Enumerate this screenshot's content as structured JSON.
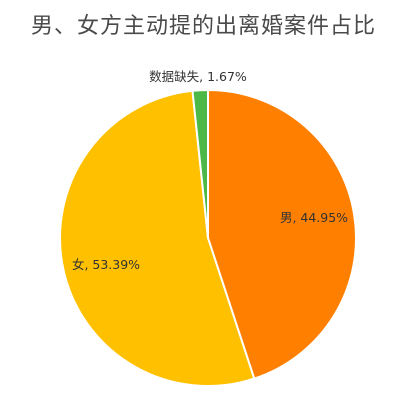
{
  "title": "男、女方主动提的出离婚案件占比",
  "chart_data": {
    "type": "pie",
    "title": "男、女方主动提的出离婚案件占比",
    "slices": [
      {
        "name": "男",
        "value": 44.95,
        "label": "男, 44.95%",
        "color": "#FF7F00"
      },
      {
        "name": "女",
        "value": 53.39,
        "label": "女, 53.39%",
        "color": "#FFC000"
      },
      {
        "name": "数据缺失",
        "value": 1.67,
        "label": "数据缺失, 1.67%",
        "color": "#4CB848"
      }
    ],
    "start": "12 o'clock",
    "direction": "clockwise",
    "legend": "none"
  }
}
